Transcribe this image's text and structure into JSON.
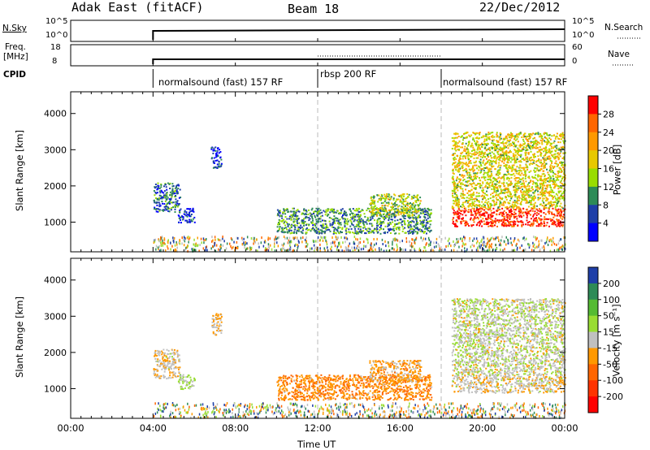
{
  "header": {
    "station": "Adak East (fitACF)",
    "beam": "Beam 18",
    "date": "22/Dec/2012"
  },
  "top_panels": {
    "nsky_label": "N.Sky",
    "nsky_ticks": [
      "10^5",
      "10^0"
    ],
    "nsearch_label": "N.Search",
    "freq_label_line1": "Freq.",
    "freq_label_line2": "[MHz]",
    "freq_ticks": [
      "18",
      "8"
    ],
    "nave_label": "Nave",
    "nave_ticks": [
      "60",
      "0"
    ],
    "cpid_label": "CPID",
    "cpid_segments": [
      "normalsound (fast) 157 RF",
      "rbsp 200 RF",
      "normalsound (fast) 157 RF"
    ]
  },
  "power_panel": {
    "ylabel": "Slant Range [km]",
    "colorbar_label": "Power [dB]",
    "colorbar_ticks": [
      "28",
      "24",
      "20",
      "16",
      "12",
      "8",
      "4"
    ],
    "colorbar_colors": [
      "#ff0000",
      "#ff6600",
      "#ff9900",
      "#e8c800",
      "#99dd00",
      "#2e8b57",
      "#1f3fa8",
      "#0000ff"
    ]
  },
  "velocity_panel": {
    "ylabel": "Slant Range [km]",
    "colorbar_label": "Velocity [m s⁻¹]",
    "colorbar_ticks": [
      "200",
      "100",
      "50",
      "15",
      "-15",
      "-50",
      "-100",
      "-200"
    ],
    "colorbar_colors": [
      "#1f3fa8",
      "#2e8b57",
      "#55bb33",
      "#99dd33",
      "#c0c0c0",
      "#ff9900",
      "#ff6600",
      "#ff3300",
      "#ff0000"
    ]
  },
  "xaxis": {
    "label": "Time UT",
    "ticks": [
      "00:00",
      "04:00",
      "08:00",
      "12:00",
      "16:00",
      "20:00",
      "00:00"
    ]
  },
  "chart_data": {
    "type": "heatmap",
    "title": "Adak East (fitACF)",
    "subtitle": "Beam 18",
    "date": "22/Dec/2012",
    "xlabel": "Time UT",
    "x_ticks": [
      "00:00",
      "04:00",
      "08:00",
      "12:00",
      "16:00",
      "20:00",
      "00:00"
    ],
    "x_range_hours": [
      0,
      24
    ],
    "ylabel": "Slant Range [km]",
    "y_ticks": [
      1000,
      2000,
      3000,
      4000
    ],
    "y_range_km": [
      180,
      4600
    ],
    "data_start_hour": 4,
    "mode_changes_hours": [
      12,
      18
    ],
    "cpid_segments": [
      {
        "start": 4,
        "end": 12,
        "label": "normalsound (fast) 157 RF"
      },
      {
        "start": 12,
        "end": 18,
        "label": "rbsp 200 RF"
      },
      {
        "start": 18,
        "end": 24,
        "label": "normalsound (fast) 157 RF"
      }
    ],
    "panels": [
      {
        "name": "Power",
        "unit": "dB",
        "scale": [
          4,
          28
        ]
      },
      {
        "name": "Velocity",
        "unit": "m s-1",
        "scale": [
          -200,
          200
        ]
      }
    ],
    "scatter_regions": [
      {
        "start_hour": 4.0,
        "end_hour": 5.3,
        "range_km": [
          1300,
          2100
        ],
        "power_db": 8,
        "velocity": -15
      },
      {
        "start_hour": 5.2,
        "end_hour": 6.0,
        "range_km": [
          1000,
          1400
        ],
        "power_db": 5,
        "velocity": 30
      },
      {
        "start_hour": 6.8,
        "end_hour": 7.3,
        "range_km": [
          2500,
          3100
        ],
        "power_db": 6,
        "velocity": -20
      },
      {
        "start_hour": 10.0,
        "end_hour": 17.5,
        "range_km": [
          700,
          1400
        ],
        "power_db": 10,
        "velocity": -60
      },
      {
        "start_hour": 14.5,
        "end_hour": 17.0,
        "range_km": [
          1200,
          1800
        ],
        "power_db": 14,
        "velocity": -40
      },
      {
        "start_hour": 18.5,
        "end_hour": 24.0,
        "range_km": [
          900,
          1400
        ],
        "power_db": 26,
        "velocity": -10
      },
      {
        "start_hour": 18.5,
        "end_hour": 24.0,
        "range_km": [
          1400,
          3500
        ],
        "power_db": 16,
        "velocity": 10
      }
    ]
  }
}
